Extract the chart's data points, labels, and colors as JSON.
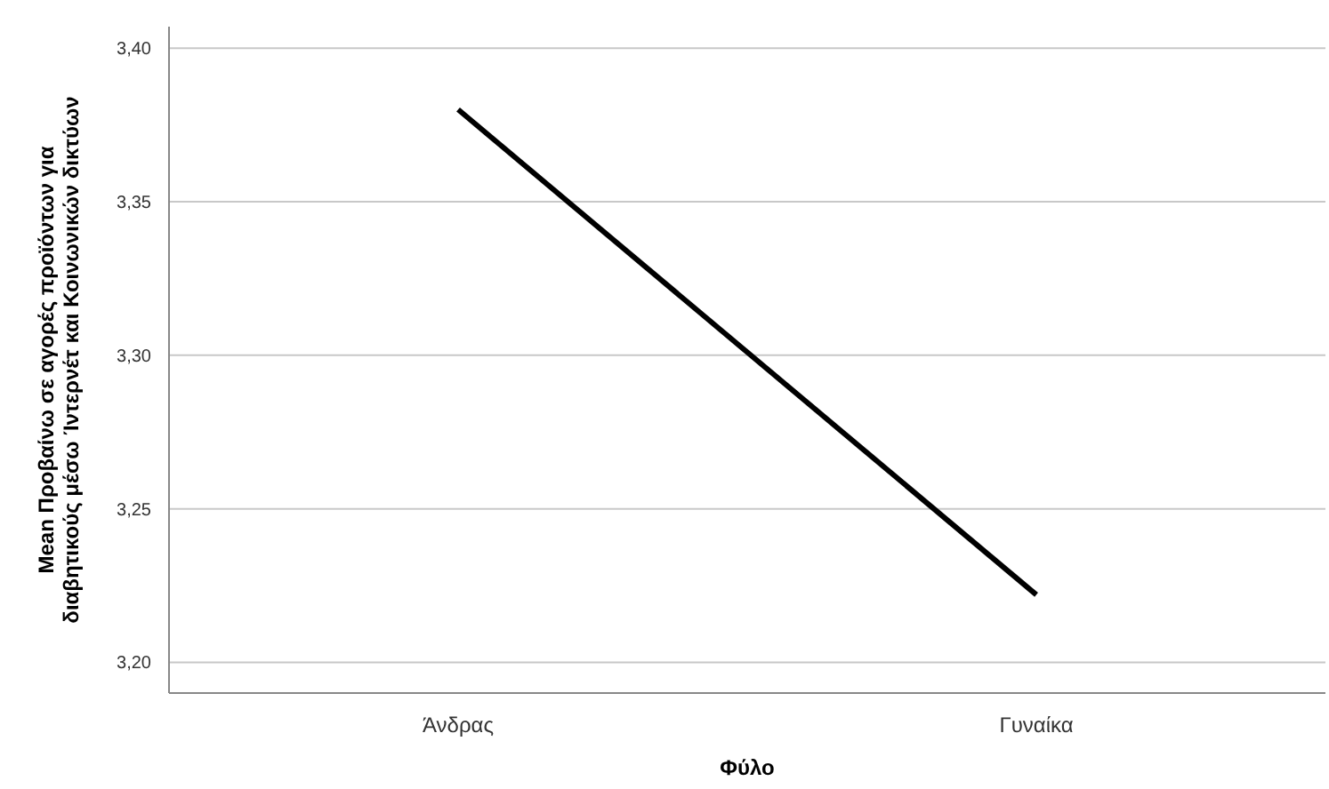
{
  "chart_data": {
    "type": "line",
    "xlabel": "Φύλο",
    "ylabel": "Mean Προβαίνω σε αγορές προϊόντων για διαβητικούς μέσω Ίντερνέτ και Κοινωνικών δικτύων",
    "categories": [
      "Άνδρας",
      "Γυναίκα"
    ],
    "series": [
      {
        "color": "#000000",
        "values": [
          3.38,
          3.222
        ]
      }
    ],
    "ylim": [
      3.19,
      3.407
    ],
    "yticks": [
      {
        "value": 3.2,
        "label": "3,20"
      },
      {
        "value": 3.25,
        "label": "3,25"
      },
      {
        "value": 3.3,
        "label": "3,30"
      },
      {
        "value": 3.35,
        "label": "3,35"
      },
      {
        "value": 3.4,
        "label": "3,40"
      }
    ],
    "grid": "y"
  }
}
